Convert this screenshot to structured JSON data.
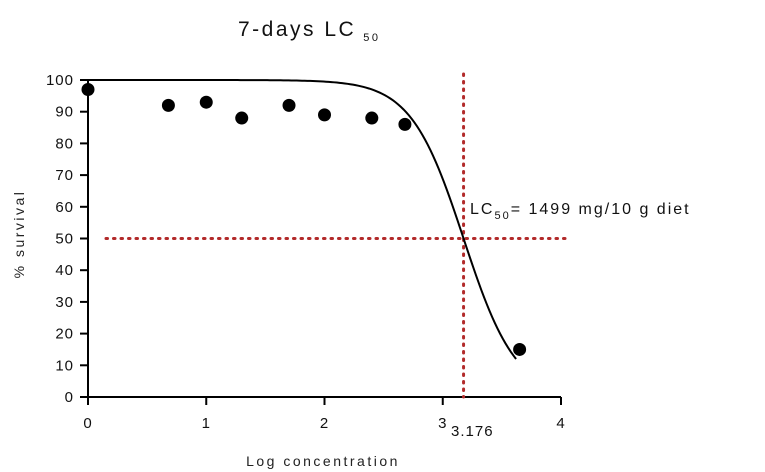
{
  "chart_data": {
    "type": "scatter",
    "title": "7-days LC",
    "title_subscript": "50",
    "xlabel": "Log concentration",
    "ylabel": "% survival",
    "xlim": [
      0,
      4
    ],
    "ylim": [
      0,
      100
    ],
    "x_ticks": [
      "0",
      "1",
      "2",
      "3",
      "4"
    ],
    "y_ticks": [
      "0",
      "10",
      "20",
      "30",
      "40",
      "50",
      "60",
      "70",
      "80",
      "90",
      "100"
    ],
    "grid": false,
    "series": [
      {
        "type": "scatter",
        "color": "#000000",
        "points": [
          {
            "x": 0.0,
            "y": 97
          },
          {
            "x": 0.68,
            "y": 92
          },
          {
            "x": 1.0,
            "y": 93
          },
          {
            "x": 1.3,
            "y": 88
          },
          {
            "x": 1.7,
            "y": 92
          },
          {
            "x": 2.0,
            "y": 89
          },
          {
            "x": 2.4,
            "y": 88
          },
          {
            "x": 2.68,
            "y": 86
          },
          {
            "x": 3.65,
            "y": 15
          }
        ]
      },
      {
        "type": "line",
        "fit": "sigmoidal dose-response",
        "color": "#000000",
        "params": {
          "top": 100,
          "bottom": 0,
          "logLC50": 3.176,
          "hill": 1.95
        },
        "x_range": [
          0,
          3.62
        ]
      }
    ],
    "reference_lines": [
      {
        "orientation": "vertical",
        "x": 3.176,
        "style": "dotted",
        "color": "#b22a2a"
      },
      {
        "orientation": "horizontal",
        "y": 50,
        "style": "dotted",
        "color": "#b22a2a"
      }
    ],
    "annotations": {
      "lc50_prefix": "LC",
      "lc50_subscript": "50",
      "lc50_value": "= 1499 mg/10 g diet",
      "x_marker_label": "3.176"
    }
  }
}
